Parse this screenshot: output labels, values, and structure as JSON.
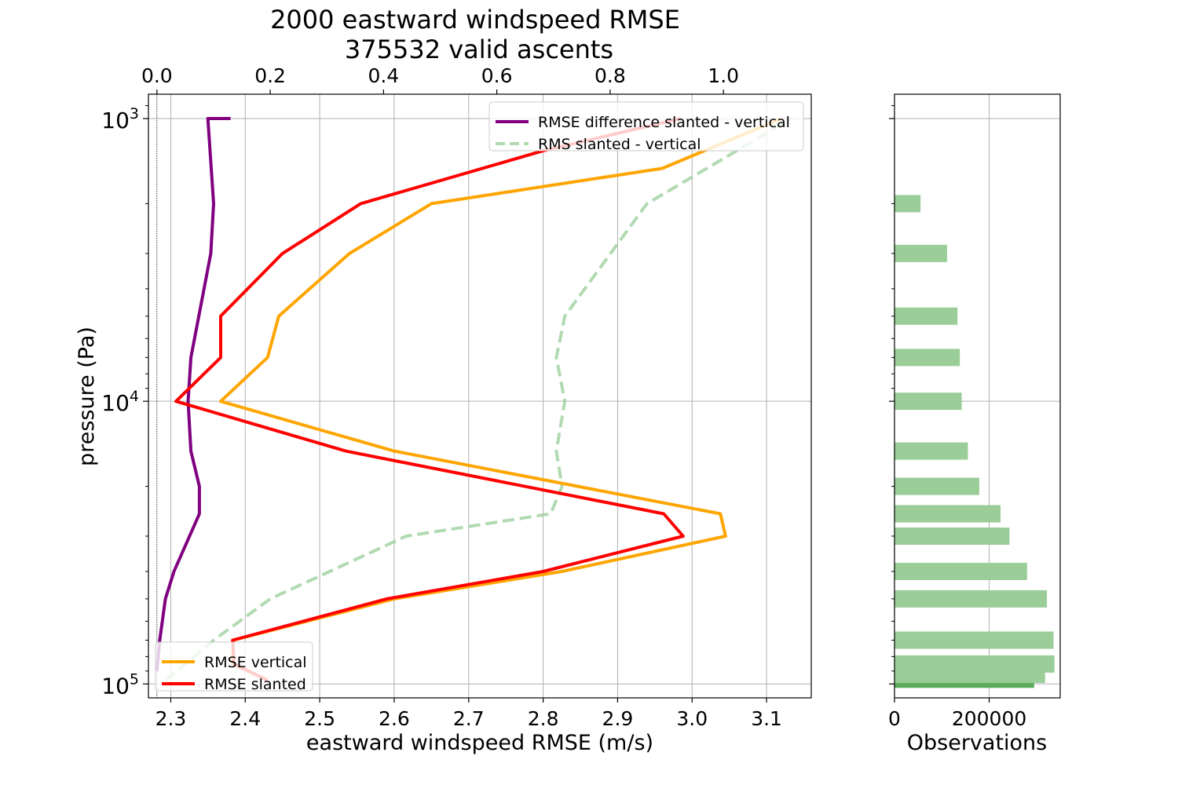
{
  "title": {
    "line1": "2000 eastward windspeed RMSE",
    "line2": "375532 valid ascents"
  },
  "colors": {
    "rmse_vertical": "#ffa500",
    "rmse_slanted": "#ff0000",
    "difference": "#800080",
    "rms_diff": "#9dd19d",
    "bars": "#9acd98",
    "bar_highlight": "#5aad5a",
    "grid": "#b0b0b0"
  },
  "chart_data": [
    {
      "type": "line",
      "title": "2000 eastward windspeed RMSE\n375532 valid ascents",
      "xlabel": "eastward windspeed RMSE (m/s)",
      "ylabel": "pressure (Pa)",
      "xlim": [
        2.27,
        3.16
      ],
      "ylim": [
        112000,
        820
      ],
      "yscale": "log",
      "x_ticks": [
        "2.3",
        "2.4",
        "2.5",
        "2.6",
        "2.7",
        "2.8",
        "2.9",
        "3.0",
        "3.1"
      ],
      "x_tick_values": [
        2.3,
        2.4,
        2.5,
        2.6,
        2.7,
        2.8,
        2.9,
        3.0,
        3.1
      ],
      "y_ticks": [
        {
          "value": 1000,
          "base": "10",
          "exp": "3"
        },
        {
          "value": 10000,
          "base": "10",
          "exp": "4"
        },
        {
          "value": 100000,
          "base": "10",
          "exp": "5"
        }
      ],
      "secondary_x": {
        "xlim": [
          -0.015,
          1.155
        ],
        "ticks": [
          "0.0",
          "0.2",
          "0.4",
          "0.6",
          "0.8",
          "1.0"
        ],
        "tick_values": [
          0.0,
          0.2,
          0.4,
          0.6,
          0.8,
          1.0
        ]
      },
      "grid": true,
      "series": [
        {
          "name": "RMSE vertical",
          "axis": "bottom",
          "color": "#ffa500",
          "style": "solid",
          "x": [
            2.43,
            2.383,
            2.384,
            2.6,
            2.825,
            3.045,
            3.038,
            2.6,
            2.367,
            2.43,
            2.445,
            2.54,
            2.65,
            2.96,
            3.12
          ],
          "y": [
            97000,
            85000,
            70000,
            50000,
            40000,
            30000,
            25000,
            15000,
            10000,
            7000,
            5000,
            3000,
            2000,
            1500,
            1000
          ]
        },
        {
          "name": "RMSE slanted",
          "axis": "bottom",
          "color": "#ff0000",
          "style": "solid",
          "x": [
            2.43,
            2.385,
            2.383,
            2.59,
            2.8,
            2.988,
            2.962,
            2.535,
            2.307,
            2.367,
            2.367,
            2.45,
            2.555,
            2.8,
            2.985
          ],
          "y": [
            97000,
            85000,
            70000,
            50000,
            40000,
            30000,
            25000,
            15000,
            10000,
            7000,
            5000,
            3000,
            2000,
            1300,
            1000
          ]
        },
        {
          "name": "RMSE difference slanted - vertical",
          "axis": "top",
          "color": "#800080",
          "style": "solid",
          "x": [
            0.0,
            0.005,
            0.015,
            0.03,
            0.075,
            0.075,
            0.06,
            0.055,
            0.06,
            0.095,
            0.1,
            0.09,
            0.13
          ],
          "y": [
            90000,
            70000,
            50000,
            40000,
            25000,
            20000,
            15000,
            10000,
            7000,
            3000,
            2000,
            1000,
            1000
          ]
        },
        {
          "name": "RMS slanted - vertical",
          "axis": "top",
          "color": "#9dd19d",
          "style": "dashed",
          "x": [
            0.015,
            0.05,
            0.1,
            0.2,
            0.44,
            0.695,
            0.715,
            0.705,
            0.72,
            0.705,
            0.72,
            0.865,
            1.12
          ],
          "y": [
            97000,
            85000,
            70000,
            50000,
            30000,
            25000,
            20000,
            15000,
            10000,
            7000,
            5000,
            2000,
            1000
          ]
        }
      ],
      "legends": [
        {
          "placement": "upper-right",
          "entries": [
            "RMSE difference slanted - vertical",
            "RMS slanted - vertical"
          ]
        },
        {
          "placement": "lower-left",
          "entries": [
            "RMSE vertical",
            "RMSE slanted"
          ]
        }
      ]
    },
    {
      "type": "bar",
      "orientation": "horizontal",
      "xlabel": "Observations",
      "xlim": [
        0,
        350000
      ],
      "yscale": "log",
      "x_ticks": [
        "0",
        "200000"
      ],
      "x_tick_values": [
        0,
        200000
      ],
      "grid": true,
      "bars": [
        {
          "pressure": 100000,
          "value": 295000,
          "highlight": true
        },
        {
          "pressure": 92500,
          "value": 318000
        },
        {
          "pressure": 85000,
          "value": 338000
        },
        {
          "pressure": 70000,
          "value": 336000
        },
        {
          "pressure": 50000,
          "value": 322000
        },
        {
          "pressure": 40000,
          "value": 280000
        },
        {
          "pressure": 30000,
          "value": 243000
        },
        {
          "pressure": 25000,
          "value": 224000
        },
        {
          "pressure": 20000,
          "value": 179000
        },
        {
          "pressure": 15000,
          "value": 155000
        },
        {
          "pressure": 10000,
          "value": 142000
        },
        {
          "pressure": 7000,
          "value": 138000
        },
        {
          "pressure": 5000,
          "value": 133000
        },
        {
          "pressure": 3000,
          "value": 111000
        },
        {
          "pressure": 2000,
          "value": 55000
        }
      ]
    }
  ]
}
